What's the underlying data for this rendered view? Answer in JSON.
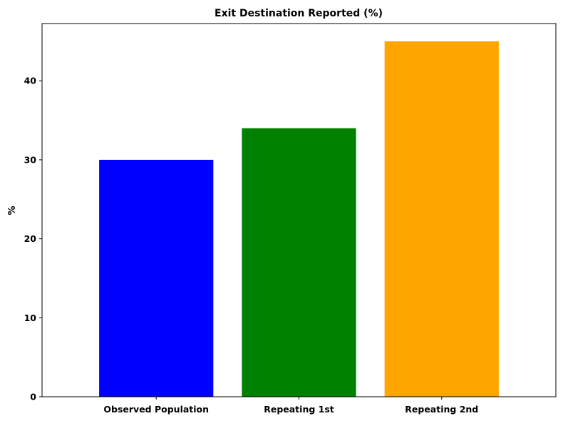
{
  "chart_data": {
    "type": "bar",
    "title": "Exit Destination Reported (%)",
    "xlabel": "",
    "ylabel": "%",
    "categories": [
      "Observed Population",
      "Repeating 1st",
      "Repeating 2nd"
    ],
    "values": [
      30,
      34,
      45
    ],
    "colors": [
      "#0000ff",
      "#008000",
      "#ffa500"
    ],
    "ylim": [
      0,
      47.25
    ],
    "yticks": [
      0,
      10,
      20,
      30,
      40
    ],
    "grid": false,
    "legend": "none"
  }
}
